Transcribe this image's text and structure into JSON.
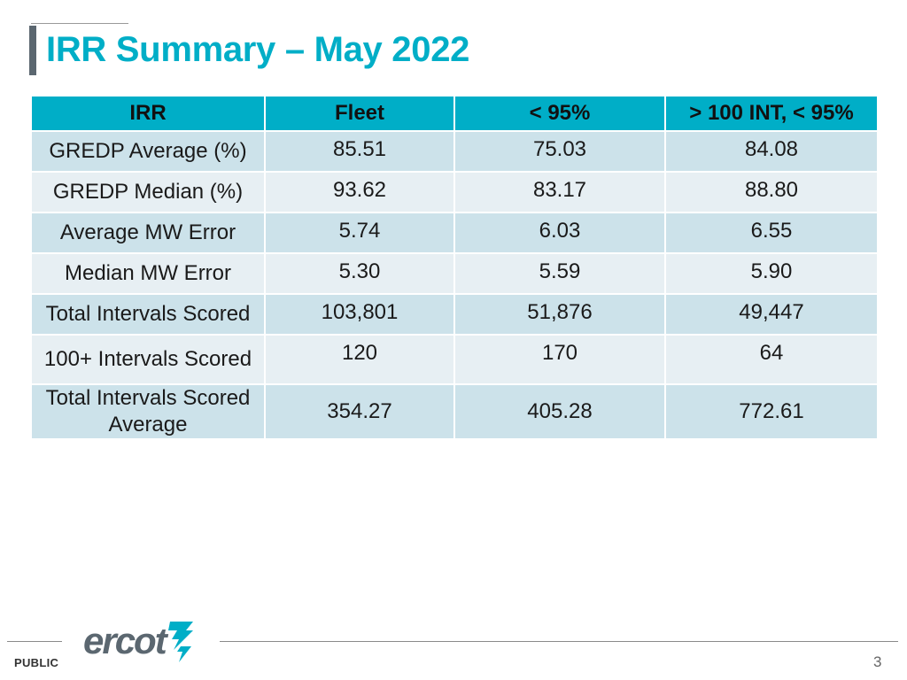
{
  "slide": {
    "title": "IRR Summary – May 2022",
    "page_number": "3",
    "classification": "PUBLIC",
    "logo_text": "ercot",
    "accent_color": "#00aec7"
  },
  "table": {
    "headers": [
      "IRR",
      "Fleet",
      "< 95%",
      "> 100 INT, < 95%"
    ],
    "rows": [
      {
        "label": "GREDP Average (%)",
        "values": [
          "85.51",
          "75.03",
          "84.08"
        ]
      },
      {
        "label": "GREDP Median (%)",
        "values": [
          "93.62",
          "83.17",
          "88.80"
        ]
      },
      {
        "label": "Average MW Error",
        "values": [
          "5.74",
          "6.03",
          "6.55"
        ]
      },
      {
        "label": "Median MW Error",
        "values": [
          "5.30",
          "5.59",
          "5.90"
        ]
      },
      {
        "label": "Total Intervals Scored",
        "values": [
          "103,801",
          "51,876",
          "49,447"
        ]
      },
      {
        "label": "100+ Intervals Scored",
        "values": [
          "120",
          "170",
          "64"
        ]
      },
      {
        "label": "Total Intervals Scored Average",
        "values": [
          "354.27",
          "405.28",
          "772.61"
        ]
      }
    ]
  }
}
